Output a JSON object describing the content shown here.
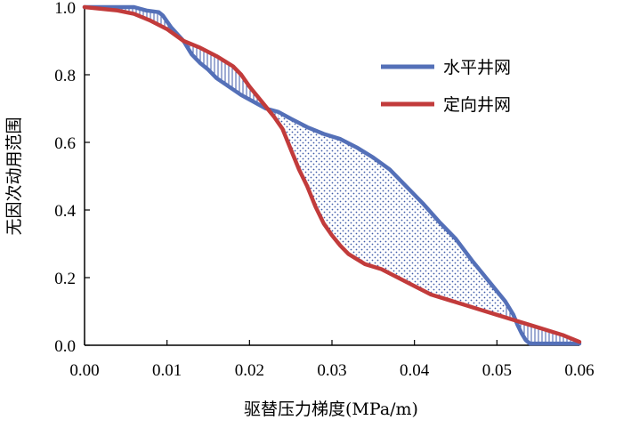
{
  "chart_data": {
    "type": "line",
    "xlabel": "驱替压力梯度(MPa/m)",
    "ylabel": "无因次动用范围",
    "xlim": [
      0,
      0.06
    ],
    "ylim": [
      0,
      1.0
    ],
    "x_ticks": [
      "0.00",
      "0.01",
      "0.02",
      "0.03",
      "0.04",
      "0.05",
      "0.06"
    ],
    "y_ticks": [
      "0.0",
      "0.2",
      "0.4",
      "0.6",
      "0.8",
      "1.0"
    ],
    "grid": false,
    "legend_position": "top-right",
    "fill_between": {
      "vertical_hatch_regions": true,
      "dotted_region": true
    },
    "series": [
      {
        "name": "水平井网",
        "color": "#5470b8",
        "points": [
          [
            0,
            1.0
          ],
          [
            0.003,
            1.0
          ],
          [
            0.006,
            1.0
          ],
          [
            0.0075,
            0.99
          ],
          [
            0.009,
            0.985
          ],
          [
            0.0095,
            0.975
          ],
          [
            0.0105,
            0.94
          ],
          [
            0.012,
            0.9
          ],
          [
            0.013,
            0.86
          ],
          [
            0.014,
            0.835
          ],
          [
            0.015,
            0.815
          ],
          [
            0.016,
            0.79
          ],
          [
            0.0175,
            0.765
          ],
          [
            0.019,
            0.74
          ],
          [
            0.0205,
            0.72
          ],
          [
            0.022,
            0.7
          ],
          [
            0.0235,
            0.69
          ],
          [
            0.025,
            0.67
          ],
          [
            0.027,
            0.645
          ],
          [
            0.029,
            0.625
          ],
          [
            0.031,
            0.61
          ],
          [
            0.033,
            0.585
          ],
          [
            0.035,
            0.555
          ],
          [
            0.037,
            0.52
          ],
          [
            0.039,
            0.47
          ],
          [
            0.041,
            0.42
          ],
          [
            0.043,
            0.365
          ],
          [
            0.045,
            0.315
          ],
          [
            0.047,
            0.25
          ],
          [
            0.049,
            0.19
          ],
          [
            0.051,
            0.13
          ],
          [
            0.052,
            0.09
          ],
          [
            0.0525,
            0.06
          ],
          [
            0.053,
            0.035
          ],
          [
            0.0535,
            0.015
          ],
          [
            0.054,
            0.005
          ],
          [
            0.055,
            0.005
          ],
          [
            0.057,
            0.005
          ],
          [
            0.059,
            0.005
          ],
          [
            0.06,
            0.005
          ]
        ]
      },
      {
        "name": "定向井网",
        "color": "#c23b3b",
        "points": [
          [
            0,
            1.0
          ],
          [
            0.002,
            0.995
          ],
          [
            0.004,
            0.99
          ],
          [
            0.006,
            0.98
          ],
          [
            0.008,
            0.96
          ],
          [
            0.01,
            0.935
          ],
          [
            0.012,
            0.9
          ],
          [
            0.014,
            0.88
          ],
          [
            0.016,
            0.855
          ],
          [
            0.018,
            0.825
          ],
          [
            0.019,
            0.8
          ],
          [
            0.02,
            0.765
          ],
          [
            0.021,
            0.735
          ],
          [
            0.022,
            0.705
          ],
          [
            0.023,
            0.675
          ],
          [
            0.024,
            0.64
          ],
          [
            0.025,
            0.58
          ],
          [
            0.026,
            0.52
          ],
          [
            0.027,
            0.47
          ],
          [
            0.028,
            0.41
          ],
          [
            0.029,
            0.36
          ],
          [
            0.03,
            0.325
          ],
          [
            0.031,
            0.295
          ],
          [
            0.032,
            0.27
          ],
          [
            0.034,
            0.24
          ],
          [
            0.036,
            0.225
          ],
          [
            0.038,
            0.2
          ],
          [
            0.04,
            0.175
          ],
          [
            0.042,
            0.15
          ],
          [
            0.044,
            0.135
          ],
          [
            0.046,
            0.12
          ],
          [
            0.048,
            0.105
          ],
          [
            0.05,
            0.09
          ],
          [
            0.052,
            0.075
          ],
          [
            0.054,
            0.06
          ],
          [
            0.056,
            0.045
          ],
          [
            0.058,
            0.03
          ],
          [
            0.06,
            0.01
          ]
        ]
      }
    ]
  }
}
